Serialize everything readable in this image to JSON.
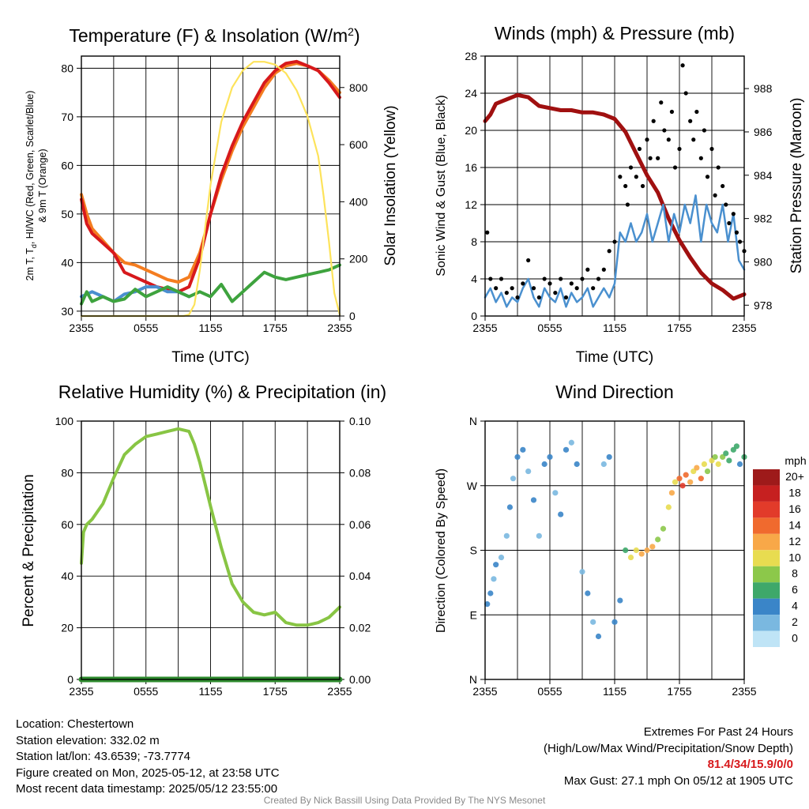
{
  "colors": {
    "temp_2m": "#d7191c",
    "dewpoint": "#3ea33e",
    "heat_index": "#4a8fd0",
    "temp_9m": "#f47d20",
    "insolation": "#fde35b",
    "sonic_wind": "#4a90cf",
    "gust": "#000000",
    "pressure": "#a01010",
    "humidity": "#88c544",
    "precipitation": "#2e8b2e"
  },
  "chart_data": [
    {
      "id": "temp",
      "type": "line",
      "title": "Temperature (F) & Insolation (W/m",
      "title_sup": "2",
      "title_end": ")",
      "xlabel": "Time (UTC)",
      "ylabel_line1": "2m T, T",
      "ylabel_sub": "d",
      "ylabel_line1_rest": ", HI/WC (Red, Green, Scarlet/Blue)",
      "ylabel_line2": "& 9m T (Orange)",
      "y2label": "Solar Insolation (Yellow)",
      "x_ticks": [
        "2355",
        "0555",
        "1155",
        "1755",
        "2355"
      ],
      "ylim": [
        29,
        82.5
      ],
      "y_ticks": [
        "30",
        "40",
        "50",
        "60",
        "70",
        "80"
      ],
      "y2lim": [
        0,
        910
      ],
      "y2_ticks": [
        "0",
        "200",
        "400",
        "600",
        "800"
      ],
      "grid": true,
      "series": [
        {
          "color_key": "temp_9m",
          "kind": "line",
          "x": [
            0,
            0.5,
            1,
            2,
            3,
            4,
            5,
            6,
            7,
            8,
            9,
            10,
            11,
            12,
            13,
            14,
            15,
            16,
            17,
            18,
            19,
            20,
            21,
            22,
            23,
            24
          ],
          "values": [
            54,
            50,
            47,
            44.5,
            42,
            40,
            39.5,
            38.5,
            37.5,
            36.5,
            36,
            37,
            42,
            50,
            57,
            63,
            68,
            72,
            76,
            79,
            80.5,
            81,
            80.5,
            79.5,
            77.5,
            75
          ]
        },
        {
          "color_key": "temp_2m",
          "kind": "line",
          "x": [
            0,
            0.5,
            1,
            2,
            3,
            4,
            5,
            6,
            7,
            8,
            9,
            10,
            11,
            12,
            13,
            14,
            15,
            16,
            17,
            18,
            19,
            20,
            21,
            22,
            23,
            24
          ],
          "values": [
            53,
            48,
            46,
            44,
            42,
            38,
            37,
            36,
            35,
            34.5,
            34,
            35,
            41,
            50,
            58,
            64,
            69,
            73,
            77,
            79.5,
            81,
            81.4,
            80.5,
            79.5,
            77,
            74
          ]
        },
        {
          "color_key": "heat_index",
          "kind": "line",
          "x": [
            0,
            1,
            2,
            3,
            4,
            5,
            6,
            7,
            8,
            9,
            10
          ],
          "values": [
            33,
            34,
            33,
            32,
            33.5,
            34,
            35,
            35,
            34,
            34,
            33
          ]
        },
        {
          "color_key": "dewpoint",
          "kind": "line",
          "x": [
            0,
            0.5,
            1,
            2,
            3,
            4,
            5,
            6,
            7,
            8,
            9,
            10,
            11,
            12,
            13,
            14,
            15,
            16,
            17,
            18,
            19,
            20,
            21,
            22,
            23,
            24
          ],
          "values": [
            31.5,
            34,
            32,
            33,
            32,
            32.5,
            34.5,
            33,
            34,
            35,
            34,
            33,
            34,
            33,
            35.5,
            32,
            34,
            36,
            38,
            37,
            36.5,
            37,
            37.5,
            38,
            38.5,
            39.5
          ]
        },
        {
          "color_key": "insolation",
          "kind": "line",
          "axis": "y2",
          "x": [
            0,
            3,
            6,
            8,
            9.5,
            10,
            10.5,
            11,
            12,
            13,
            14,
            15,
            16,
            17,
            18,
            19,
            20,
            21,
            22,
            22.5,
            23,
            23.5,
            24
          ],
          "values": [
            0,
            0,
            0,
            0,
            0,
            5,
            40,
            160,
            460,
            680,
            800,
            860,
            890,
            890,
            880,
            850,
            790,
            700,
            560,
            420,
            260,
            80,
            5
          ]
        }
      ]
    },
    {
      "id": "wind",
      "type": "line",
      "title": "Winds (mph) & Pressure (mb)",
      "xlabel": "Time (UTC)",
      "ylabel": "Sonic Wind & Gust (Blue, Black)",
      "y2label": "Station Pressure (Maroon)",
      "x_ticks": [
        "2355",
        "0555",
        "1155",
        "1755",
        "2355"
      ],
      "ylim": [
        0,
        28
      ],
      "y_ticks": [
        "0",
        "4",
        "8",
        "12",
        "16",
        "20",
        "24",
        "28"
      ],
      "y2lim": [
        977.5,
        989.5
      ],
      "y2_ticks": [
        "978",
        "980",
        "982",
        "984",
        "986",
        "988"
      ],
      "grid": true,
      "series": [
        {
          "color_key": "pressure",
          "kind": "line",
          "axis": "y2",
          "x": [
            0,
            0.5,
            1,
            2,
            3,
            4,
            5,
            6,
            7,
            8,
            9,
            10,
            11,
            12,
            13,
            14,
            15,
            16,
            17,
            18,
            19,
            20,
            21,
            22,
            23,
            24
          ],
          "values": [
            986.5,
            986.8,
            987.3,
            987.5,
            987.7,
            987.6,
            987.2,
            987.1,
            987.0,
            987.0,
            986.9,
            986.9,
            986.8,
            986.6,
            986.0,
            985.0,
            984.0,
            983.2,
            982.0,
            981.0,
            980.2,
            979.5,
            979.0,
            978.7,
            978.3,
            978.5
          ]
        },
        {
          "color_key": "sonic_wind",
          "kind": "line",
          "x": [
            0,
            0.5,
            1,
            1.5,
            2,
            2.5,
            3,
            3.5,
            4,
            4.5,
            5,
            5.5,
            6,
            6.5,
            7,
            7.5,
            8,
            8.5,
            9,
            9.5,
            10,
            10.5,
            11,
            11.5,
            12,
            12.5,
            13,
            13.5,
            14,
            14.5,
            15,
            15.5,
            16,
            16.5,
            17,
            17.5,
            18,
            18.5,
            19,
            19.5,
            20,
            20.5,
            21,
            21.5,
            22,
            22.5,
            23,
            23.5,
            24
          ],
          "values": [
            2,
            3,
            1.5,
            2.5,
            1,
            2,
            1.5,
            3,
            4,
            2,
            1,
            3,
            2,
            1.5,
            3,
            1,
            2.5,
            1.5,
            2,
            3,
            1,
            2,
            3,
            2,
            3.5,
            9,
            8,
            10,
            8,
            9,
            11,
            8,
            10,
            12,
            8,
            11,
            9,
            12,
            10,
            13,
            8,
            12,
            10,
            9,
            12,
            8,
            11,
            6,
            5
          ]
        }
      ],
      "gusts": {
        "color_key": "gust",
        "kind": "scatter",
        "x": [
          0.2,
          0.5,
          1,
          1.5,
          2,
          2.5,
          3,
          3.5,
          4,
          4.5,
          5,
          5.5,
          6,
          6.5,
          7,
          7.5,
          8,
          8.5,
          9,
          9.5,
          10,
          10.5,
          11,
          11.5,
          12,
          12.5,
          13,
          13.2,
          13.5,
          14,
          14.3,
          14.6,
          15,
          15.3,
          15.6,
          16,
          16.3,
          16.6,
          17,
          17.3,
          17.6,
          18,
          18.3,
          18.6,
          19,
          19.3,
          19.6,
          20,
          20.3,
          20.6,
          21,
          21.3,
          21.6,
          22,
          22.3,
          22.6,
          23,
          23.3,
          23.6,
          24
        ],
        "values": [
          9,
          4,
          3,
          4,
          2.5,
          3,
          2,
          3.5,
          6,
          3,
          2,
          4,
          3.5,
          2.5,
          4,
          2,
          3.5,
          3,
          4,
          5,
          3,
          4,
          5,
          7,
          8,
          15,
          14,
          12,
          16,
          15,
          18,
          14,
          19,
          17,
          21,
          17,
          23,
          20,
          19,
          22,
          16,
          18,
          27,
          24,
          21,
          19,
          22,
          17,
          20,
          15,
          18,
          13,
          16,
          14,
          12,
          10,
          11,
          9,
          8,
          7
        ]
      }
    },
    {
      "id": "rh",
      "type": "line",
      "title": "Relative Humidity (%) & Precipitation (in)",
      "ylabel": "Percent & Precipitation",
      "x_ticks": [
        "2355",
        "0555",
        "1155",
        "1755",
        "2355"
      ],
      "ylim": [
        0,
        100
      ],
      "y_ticks": [
        "0",
        "20",
        "40",
        "60",
        "80",
        "100"
      ],
      "y2lim": [
        0,
        0.1
      ],
      "y2_ticks": [
        "0.00",
        "0.02",
        "0.04",
        "0.06",
        "0.08",
        "0.10"
      ],
      "grid": true,
      "series": [
        {
          "color_key": "humidity",
          "kind": "line",
          "x": [
            0,
            0.2,
            0.5,
            1,
            1.5,
            2,
            3,
            4,
            5,
            6,
            7,
            8,
            9,
            10,
            10.5,
            11,
            12,
            13,
            14,
            15,
            16,
            17,
            18,
            19,
            20,
            21,
            22,
            23,
            24
          ],
          "values": [
            45,
            57,
            60,
            62,
            65,
            68,
            78,
            87,
            91,
            94,
            95,
            96,
            97,
            96,
            91,
            84,
            67,
            51,
            37,
            30,
            26,
            25,
            26,
            22,
            21,
            21,
            22,
            24,
            28
          ]
        },
        {
          "color_key": "precipitation",
          "kind": "line",
          "x": [
            0,
            24
          ],
          "values": [
            0,
            0
          ]
        }
      ]
    },
    {
      "id": "wdir",
      "type": "scatter",
      "title": "Wind Direction",
      "ylabel": "Direction (Colored By Speed)",
      "x_ticks": [
        "2355",
        "0555",
        "1155",
        "1755",
        "2355"
      ],
      "y_ticks": [
        "N",
        "E",
        "S",
        "W",
        "N"
      ],
      "ylim": [
        0,
        360
      ],
      "grid": true,
      "legend": {
        "title": "mph",
        "placement": "right",
        "labels": [
          "20+",
          "18",
          "16",
          "14",
          "12",
          "10",
          "8",
          "6",
          "4",
          "2",
          "0"
        ],
        "colors": [
          "#9e1a1a",
          "#c62020",
          "#e23b2a",
          "#f06a2e",
          "#f8a848",
          "#e8dc50",
          "#8cc84a",
          "#3ea86a",
          "#3a85c8",
          "#7ab8e0",
          "#bfe4f6"
        ]
      },
      "points": [
        [
          0.2,
          105,
          3
        ],
        [
          0.5,
          120,
          3
        ],
        [
          0.8,
          140,
          2
        ],
        [
          1,
          160,
          3
        ],
        [
          1.5,
          170,
          2
        ],
        [
          2,
          200,
          2
        ],
        [
          2.3,
          240,
          3
        ],
        [
          2.6,
          280,
          2
        ],
        [
          3,
          310,
          3
        ],
        [
          3.5,
          320,
          4
        ],
        [
          4,
          290,
          2
        ],
        [
          4.5,
          250,
          3
        ],
        [
          5,
          200,
          2
        ],
        [
          5.5,
          300,
          3
        ],
        [
          6,
          310,
          4
        ],
        [
          6.5,
          260,
          2
        ],
        [
          7,
          230,
          3
        ],
        [
          7.5,
          320,
          3
        ],
        [
          8,
          330,
          2
        ],
        [
          8.5,
          300,
          4
        ],
        [
          9,
          150,
          2
        ],
        [
          9.5,
          120,
          3
        ],
        [
          10,
          80,
          2
        ],
        [
          10.5,
          60,
          3
        ],
        [
          11,
          300,
          2
        ],
        [
          11.5,
          310,
          4
        ],
        [
          12,
          80,
          3
        ],
        [
          12.5,
          110,
          4
        ],
        [
          13,
          180,
          5
        ],
        [
          13.5,
          170,
          9
        ],
        [
          14,
          180,
          10
        ],
        [
          14.5,
          175,
          11
        ],
        [
          15,
          180,
          12
        ],
        [
          15.5,
          185,
          11
        ],
        [
          16,
          195,
          8
        ],
        [
          16.5,
          210,
          7
        ],
        [
          17,
          240,
          10
        ],
        [
          17.3,
          260,
          12
        ],
        [
          17.6,
          275,
          9
        ],
        [
          18,
          280,
          14
        ],
        [
          18.3,
          270,
          16
        ],
        [
          18.6,
          285,
          13
        ],
        [
          19,
          275,
          12
        ],
        [
          19.3,
          290,
          10
        ],
        [
          19.6,
          295,
          11
        ],
        [
          20,
          280,
          13
        ],
        [
          20.3,
          300,
          9
        ],
        [
          20.6,
          290,
          8
        ],
        [
          21,
          305,
          10
        ],
        [
          21.3,
          310,
          7
        ],
        [
          21.6,
          300,
          9
        ],
        [
          22,
          310,
          8
        ],
        [
          22.3,
          315,
          6
        ],
        [
          22.6,
          305,
          5
        ],
        [
          23,
          320,
          6
        ],
        [
          23.3,
          325,
          5
        ],
        [
          23.6,
          300,
          4
        ],
        [
          24,
          310,
          5
        ]
      ]
    }
  ],
  "info": {
    "location": "Location: Chestertown",
    "elevation": "Station elevation: 332.02 m",
    "latlon": "Station lat/lon: 43.6539; -73.7774",
    "created": "Figure created on Mon, 2025-05-12, at 23:58 UTC",
    "recent": "Most recent data timestamp: 2025/05/12 23:55:00",
    "extremes_title": "Extremes For Past 24 Hours",
    "extremes_desc": "(High/Low/Max Wind/Precipitation/Snow Depth)",
    "extremes_values": "81.4/34/15.9/0/0",
    "max_gust": "Max Gust: 27.1 mph On 05/12 at 1905 UTC"
  },
  "credit": "Created By Nick Bassill Using Data Provided By The NYS Mesonet"
}
